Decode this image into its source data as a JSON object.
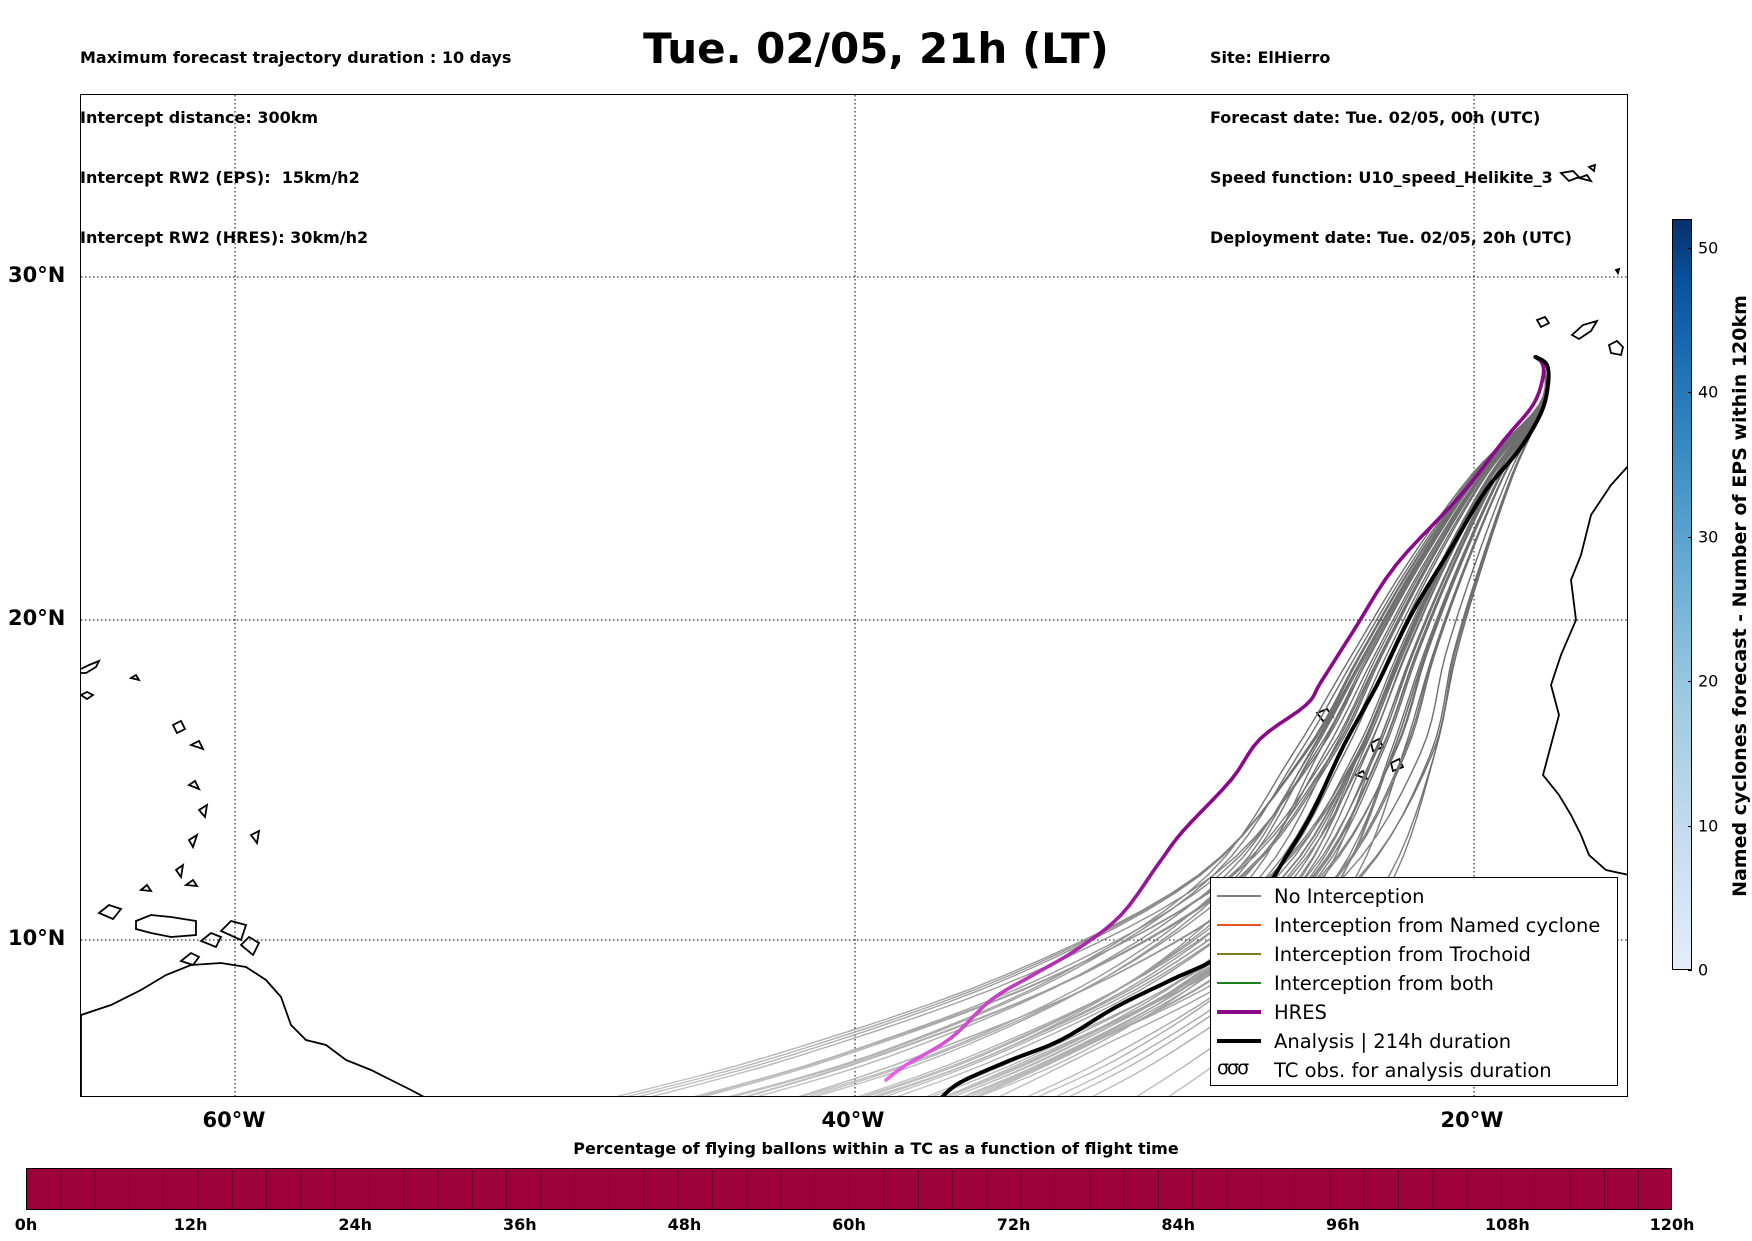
{
  "header_left": [
    "Maximum forecast trajectory duration : 10 days",
    "Intercept distance: 300km",
    "Intercept RW2 (EPS):  15km/h2",
    "Intercept RW2 (HRES): 30km/h2"
  ],
  "title": "Tue. 02/05, 21h (LT)",
  "header_right": [
    "Site: ElHierro",
    "Forecast date: Tue. 02/05, 00h (UTC)",
    "Speed function: U10_speed_Helikite_3",
    "Deployment date: Tue. 02/05, 20h (UTC)"
  ],
  "map": {
    "lat_labels": [
      "30°N",
      "20°N",
      "10°N"
    ],
    "lon_labels": [
      "60°W",
      "40°W",
      "20°W"
    ],
    "colors": {
      "hres_near": "#8b0a8b",
      "hres_far": "#ee6aee",
      "analysis": "#000000",
      "eps_near": "#6e6e6e",
      "eps_far": "#cccccc"
    }
  },
  "legend": [
    {
      "label": "No Interception",
      "color": "#808080",
      "width": 1.5
    },
    {
      "label": "Interception from Named cyclone",
      "color": "#e8541e",
      "width": 1.5
    },
    {
      "label": "Interception from Trochoid",
      "color": "#7f7f1e",
      "width": 1.5
    },
    {
      "label": "Interception from both",
      "color": "#1e7f1e",
      "width": 1.5
    },
    {
      "label": "HRES",
      "color": "#8b0a8b",
      "width": 4
    },
    {
      "label": "Analysis | 214h duration",
      "color": "#000000",
      "width": 4
    }
  ],
  "legend_tc": {
    "glyph": "σσσ",
    "label": "TC obs. for analysis duration"
  },
  "colorbar_right": {
    "label": "Named cyclones forecast - Number of EPS within 120km",
    "ticks": [
      "0",
      "10",
      "20",
      "30",
      "40",
      "50"
    ],
    "max": 52
  },
  "colorbar_bottom": {
    "title": "Percentage of flying ballons within a TC as a function of flight time",
    "ticks": [
      "0h",
      "12h",
      "24h",
      "36h",
      "48h",
      "60h",
      "72h",
      "84h",
      "96h",
      "108h",
      "120h"
    ],
    "color": "#9e003a"
  }
}
